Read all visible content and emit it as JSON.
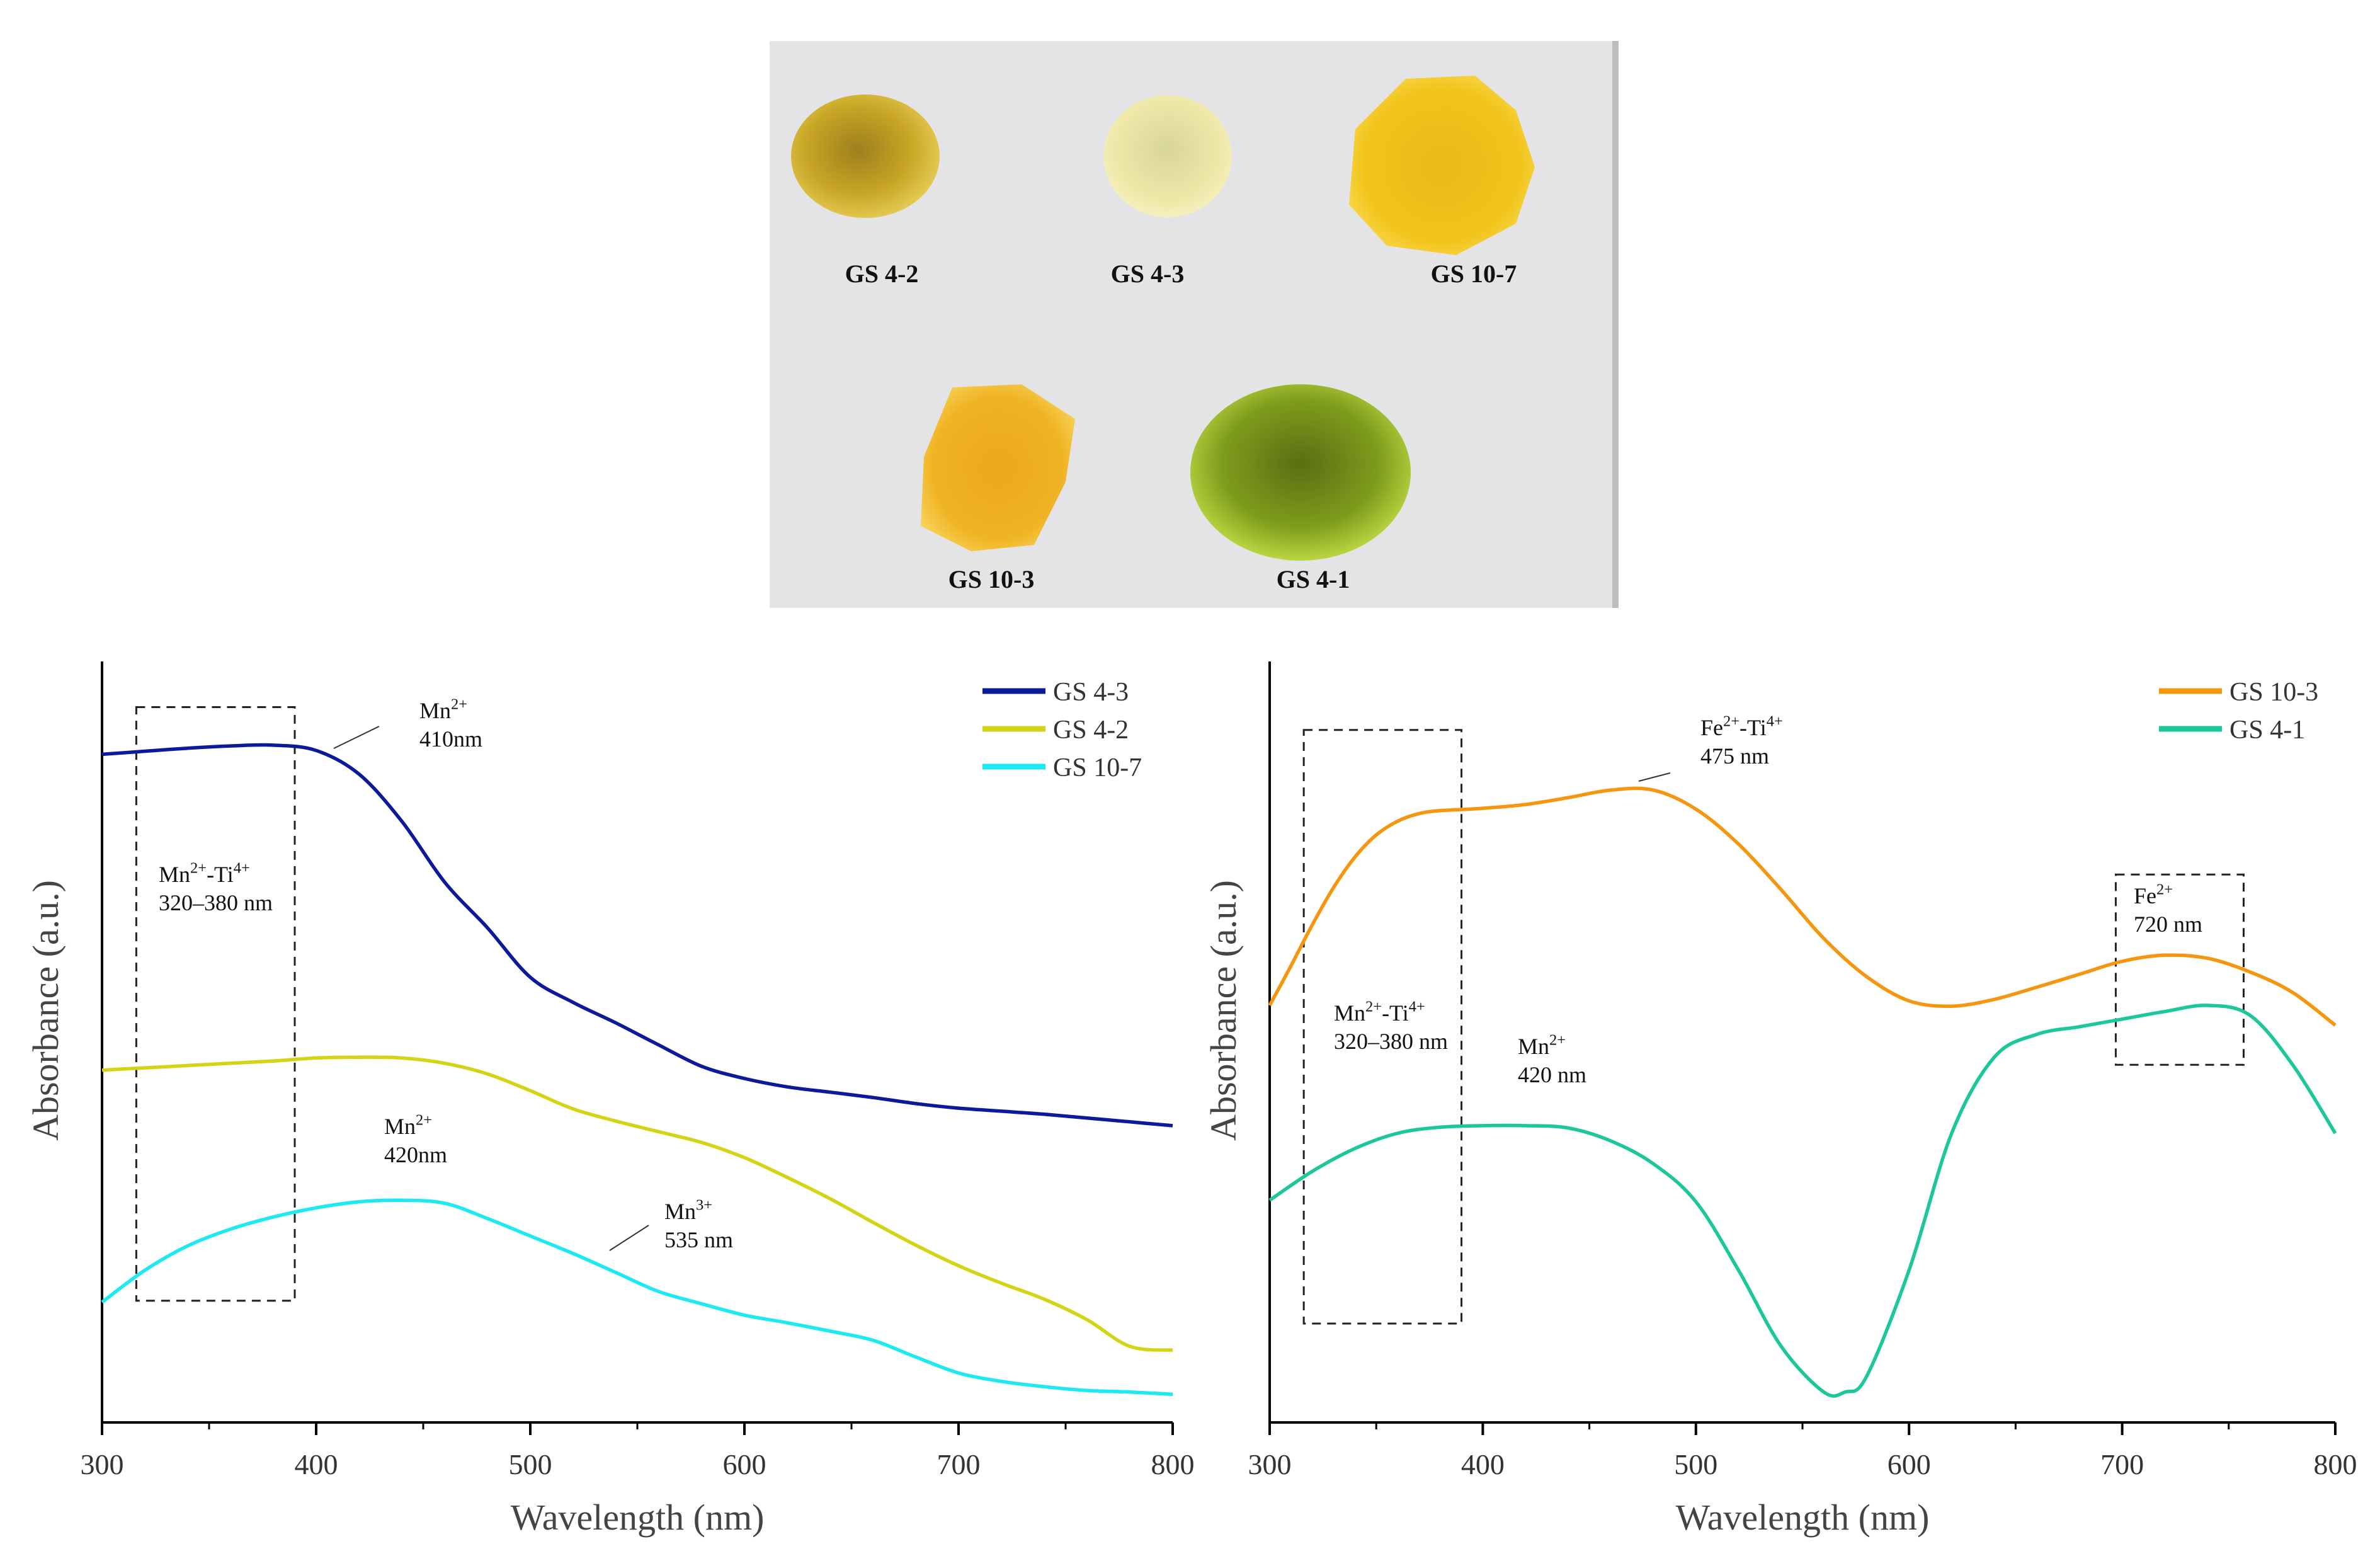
{
  "photo": {
    "gems": [
      {
        "label": "GS 4-2",
        "color": "#c9a625"
      },
      {
        "label": "GS 4-3",
        "color": "#efe8a8"
      },
      {
        "label": "GS 10-7",
        "color": "#f2c41b"
      },
      {
        "label": "GS 10-3",
        "color": "#f0b323"
      },
      {
        "label": "GS 4-1",
        "color": "#8fb21f"
      }
    ]
  },
  "chart_data": [
    {
      "type": "line",
      "xlabel": "Wavelength (nm)",
      "ylabel": "Absorbance (a.u.)",
      "xlim": [
        300,
        800
      ],
      "ylim": [
        0,
        1
      ],
      "x_ticks": [
        300,
        400,
        500,
        600,
        700,
        800
      ],
      "x_tick_labels": [
        "300",
        "400",
        "500",
        "600",
        "700",
        "800"
      ],
      "y_ticks_shown": false,
      "series": [
        {
          "name": "GS 4-3",
          "color": "#0a1a9a",
          "x": [
            300,
            320,
            340,
            360,
            380,
            400,
            420,
            440,
            460,
            480,
            500,
            520,
            540,
            560,
            580,
            600,
            620,
            640,
            660,
            680,
            700,
            720,
            740,
            760,
            780,
            800
          ],
          "y": [
            0.878,
            0.882,
            0.886,
            0.889,
            0.89,
            0.883,
            0.852,
            0.79,
            0.71,
            0.65,
            0.585,
            0.552,
            0.525,
            0.496,
            0.468,
            0.452,
            0.441,
            0.434,
            0.427,
            0.419,
            0.413,
            0.409,
            0.405,
            0.4,
            0.395,
            0.39
          ]
        },
        {
          "name": "GS 4-2",
          "color": "#d4d416",
          "x": [
            300,
            320,
            340,
            360,
            380,
            400,
            420,
            440,
            460,
            480,
            500,
            520,
            540,
            560,
            580,
            600,
            620,
            640,
            660,
            680,
            700,
            720,
            740,
            760,
            780,
            800
          ],
          "y": [
            0.463,
            0.466,
            0.469,
            0.472,
            0.475,
            0.479,
            0.48,
            0.479,
            0.472,
            0.458,
            0.436,
            0.412,
            0.396,
            0.382,
            0.368,
            0.348,
            0.322,
            0.294,
            0.263,
            0.233,
            0.206,
            0.183,
            0.162,
            0.135,
            0.1,
            0.095
          ]
        },
        {
          "name": "GS 10-7",
          "color": "#1ce9f2",
          "x": [
            300,
            320,
            340,
            360,
            380,
            400,
            420,
            440,
            460,
            480,
            500,
            520,
            540,
            560,
            580,
            600,
            620,
            640,
            660,
            680,
            700,
            720,
            740,
            760,
            780,
            800
          ],
          "y": [
            0.158,
            0.2,
            0.232,
            0.254,
            0.27,
            0.282,
            0.29,
            0.292,
            0.288,
            0.268,
            0.245,
            0.222,
            0.197,
            0.172,
            0.156,
            0.141,
            0.131,
            0.12,
            0.108,
            0.086,
            0.065,
            0.054,
            0.047,
            0.042,
            0.04,
            0.037
          ]
        }
      ],
      "annotations": [
        {
          "text": "Mn2+ 410nm",
          "line1": "Mn",
          "line1_sup": "2+",
          "line2": "410nm",
          "x": 445,
          "y": 0.9
        },
        {
          "text": "Mn2+-Ti4+ 320–380 nm",
          "line1": "Mn",
          "line1_sup": "2+",
          "line1_mid": "-Ti",
          "line1_sup2": "4+",
          "line2": "320–380 nm",
          "x": 352,
          "y": 0.71
        },
        {
          "text": "Mn2+ 420nm",
          "line1": "Mn",
          "line1_sup": "2+",
          "line2": "420nm",
          "x": 435,
          "y": 0.385
        },
        {
          "text": "Mn3+ 535 nm",
          "line1": "Mn",
          "line1_sup": "3+",
          "line2": "535 nm",
          "x": 570,
          "y": 0.26
        }
      ],
      "legend_placement": "top-right"
    },
    {
      "type": "line",
      "xlabel": "Wavelength (nm)",
      "ylabel": "Absorbance (a.u.)",
      "xlim": [
        300,
        800
      ],
      "ylim": [
        0,
        1
      ],
      "x_ticks": [
        300,
        400,
        500,
        600,
        700,
        800
      ],
      "x_tick_labels": [
        "300",
        "400",
        "500",
        "600",
        "700",
        "800"
      ],
      "y_ticks_shown": false,
      "series": [
        {
          "name": "GS 10-3",
          "color": "#f5960f",
          "x": [
            300,
            310,
            320,
            330,
            340,
            350,
            360,
            370,
            380,
            400,
            420,
            440,
            460,
            480,
            500,
            520,
            540,
            560,
            580,
            600,
            620,
            640,
            660,
            680,
            700,
            720,
            740,
            760,
            780,
            800
          ],
          "y": [
            0.548,
            0.6,
            0.654,
            0.703,
            0.743,
            0.772,
            0.79,
            0.8,
            0.804,
            0.807,
            0.812,
            0.821,
            0.831,
            0.831,
            0.806,
            0.76,
            0.7,
            0.636,
            0.586,
            0.554,
            0.547,
            0.556,
            0.572,
            0.589,
            0.606,
            0.614,
            0.61,
            0.592,
            0.565,
            0.522
          ]
        },
        {
          "name": "GS 4-1",
          "color": "#1cc79b",
          "x": [
            300,
            320,
            340,
            360,
            380,
            400,
            420,
            440,
            460,
            480,
            500,
            520,
            540,
            560,
            570,
            580,
            600,
            620,
            640,
            660,
            680,
            700,
            720,
            740,
            760,
            780,
            800
          ],
          "y": [
            0.292,
            0.33,
            0.36,
            0.38,
            0.388,
            0.39,
            0.39,
            0.387,
            0.37,
            0.34,
            0.29,
            0.2,
            0.1,
            0.04,
            0.04,
            0.06,
            0.2,
            0.38,
            0.48,
            0.51,
            0.52,
            0.53,
            0.54,
            0.548,
            0.535,
            0.47,
            0.38
          ]
        }
      ],
      "annotations": [
        {
          "text": "Fe2+-Ti4+ 475 nm",
          "line1": "Fe",
          "line1_sup": "2+",
          "line1_mid": "-Ti",
          "line1_sup2": "4+",
          "line2": "475 nm",
          "x": 520,
          "y": 0.88
        },
        {
          "text": "Mn2+-Ti4+ 320–380 nm",
          "line1": "Mn",
          "line1_sup": "2+",
          "line1_mid": "-Ti",
          "line1_sup2": "4+",
          "line2": "320–380 nm",
          "x": 357,
          "y": 0.49
        },
        {
          "text": "Mn2+ 420 nm",
          "line1": "Mn",
          "line1_sup": "2+",
          "line2": "420 nm",
          "x": 430,
          "y": 0.43
        },
        {
          "text": "Fe2+ 720 nm",
          "line1": "Fe",
          "line1_sup": "2+",
          "line2": "720 nm",
          "x": 725,
          "y": 0.675
        }
      ],
      "legend_placement": "top-right"
    }
  ]
}
